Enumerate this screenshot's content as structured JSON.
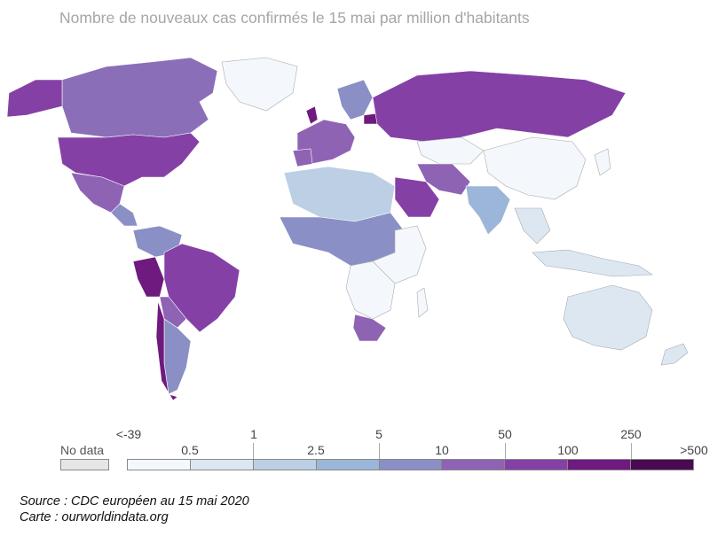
{
  "title": "Nombre de nouveaux cas confirmés le 15 mai par million d'habitants",
  "legend": {
    "no_data_label": "No data",
    "tick_labels": [
      "<-39",
      "0.5",
      "1",
      "2.5",
      "5",
      "10",
      "50",
      "100",
      "250",
      ">500"
    ],
    "bin_colors": [
      "#f4f8fc",
      "#dce7f2",
      "#bccfe4",
      "#9bb6d8",
      "#8a8fc5",
      "#8f63b4",
      "#8540a6",
      "#6e1a7e",
      "#4a0a52"
    ],
    "no_data_color": "#e6e6e6"
  },
  "source": {
    "line1": "Source : CDC européen au 15 mai 2020",
    "line2": "Carte : ourworldindata.org"
  }
}
